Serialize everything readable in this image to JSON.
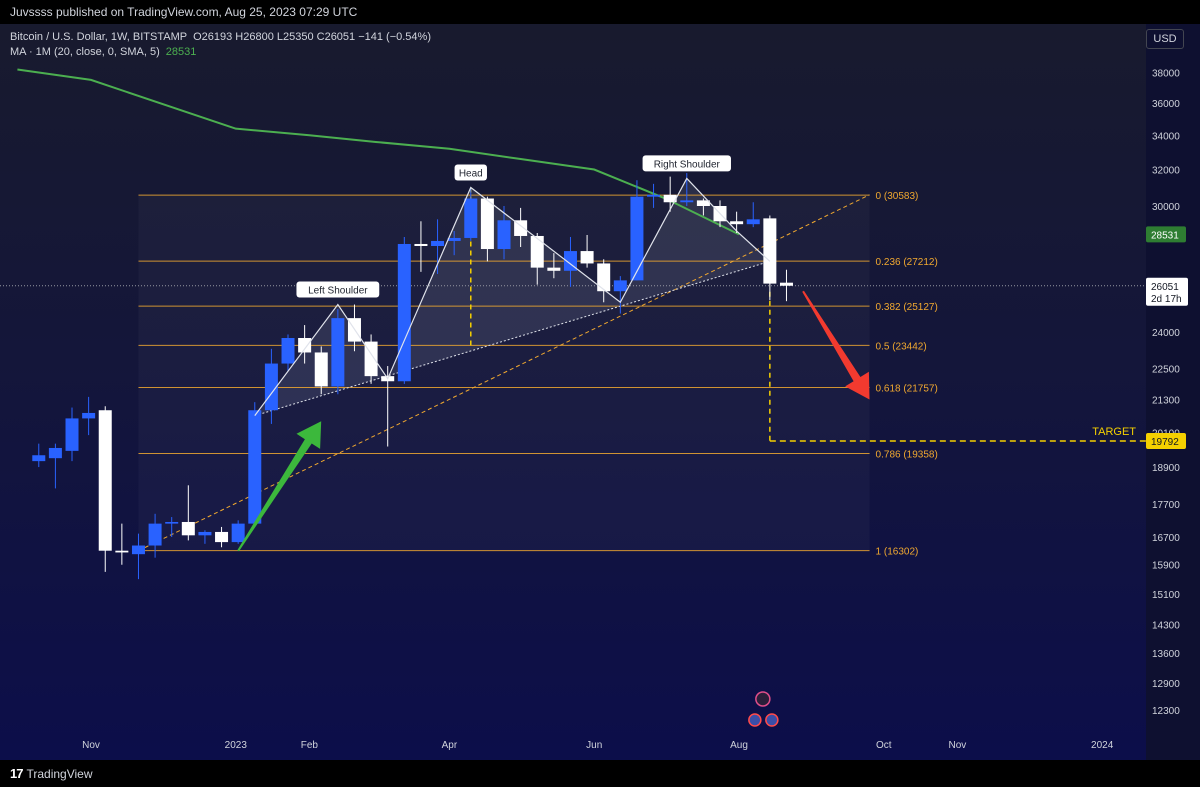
{
  "header": {
    "published": "Juvssss published on TradingView.com, Aug 25, 2023 07:29 UTC"
  },
  "legend": {
    "symbol": "Bitcoin / U.S. Dollar, 1W, BITSTAMP",
    "ohlc": "O26193  H26800  L25350  C26051  −141  (−0.54%)",
    "ma_label": "MA · 1M (20, close, 0, SMA, 5)",
    "ma_value": "28531"
  },
  "currency": "USD",
  "footer": {
    "brand": "TradingView",
    "brand_mark": "17"
  },
  "colors": {
    "up": "#2962ff",
    "down": "#ffffff",
    "ma": "#4caf50",
    "fib": "#f0a830",
    "target": "#f5d000",
    "arrow_up": "#3cb83c",
    "arrow_down": "#f23a2f"
  },
  "chart_data": {
    "type": "candlestick",
    "timeframe": "1W",
    "ylim": [
      11600,
      39000
    ],
    "y_ticks": [
      {
        "value": 38000,
        "label": "38000"
      },
      {
        "value": 36000,
        "label": "36000"
      },
      {
        "value": 34000,
        "label": "34000"
      },
      {
        "value": 32000,
        "label": "32000"
      },
      {
        "value": 30000,
        "label": "30000"
      },
      {
        "value": 24000,
        "label": "24000"
      },
      {
        "value": 22500,
        "label": "22500"
      },
      {
        "value": 21300,
        "label": "21300"
      },
      {
        "value": 20100,
        "label": "20100"
      },
      {
        "value": 18900,
        "label": "18900"
      },
      {
        "value": 17700,
        "label": "17700"
      },
      {
        "value": 16700,
        "label": "16700"
      },
      {
        "value": 15900,
        "label": "15900"
      },
      {
        "value": 15100,
        "label": "15100"
      },
      {
        "value": 14300,
        "label": "14300"
      },
      {
        "value": 13600,
        "label": "13600"
      },
      {
        "value": 12900,
        "label": "12900"
      },
      {
        "value": 12300,
        "label": "12300"
      }
    ],
    "x_ticks": [
      {
        "date": "2022-11-01",
        "label": "Nov"
      },
      {
        "date": "2023-01-01",
        "label": "2023"
      },
      {
        "date": "2023-02-01",
        "label": "Feb"
      },
      {
        "date": "2023-04-01",
        "label": "Apr"
      },
      {
        "date": "2023-06-01",
        "label": "Jun"
      },
      {
        "date": "2023-08-01",
        "label": "Aug"
      },
      {
        "date": "2023-10-01",
        "label": "Oct"
      },
      {
        "date": "2023-11-01",
        "label": "Nov"
      },
      {
        "date": "2024-01-01",
        "label": "2024"
      }
    ],
    "candles": [
      {
        "date": "2022-10-10",
        "o": 19100,
        "h": 19700,
        "l": 18900,
        "c": 19300
      },
      {
        "date": "2022-10-17",
        "o": 19200,
        "h": 19700,
        "l": 18200,
        "c": 19550
      },
      {
        "date": "2022-10-24",
        "o": 19450,
        "h": 21000,
        "l": 19100,
        "c": 20600
      },
      {
        "date": "2022-10-31",
        "o": 20600,
        "h": 21400,
        "l": 20000,
        "c": 20800
      },
      {
        "date": "2022-11-07",
        "o": 20900,
        "h": 21050,
        "l": 15700,
        "c": 16300
      },
      {
        "date": "2022-11-14",
        "o": 16300,
        "h": 17100,
        "l": 15900,
        "c": 16250
      },
      {
        "date": "2022-11-21",
        "o": 16200,
        "h": 16800,
        "l": 15500,
        "c": 16450
      },
      {
        "date": "2022-11-28",
        "o": 16450,
        "h": 17400,
        "l": 16100,
        "c": 17100
      },
      {
        "date": "2022-12-05",
        "o": 17100,
        "h": 17300,
        "l": 16700,
        "c": 17150
      },
      {
        "date": "2022-12-12",
        "o": 17150,
        "h": 18300,
        "l": 16600,
        "c": 16750
      },
      {
        "date": "2022-12-19",
        "o": 16750,
        "h": 16900,
        "l": 16500,
        "c": 16850
      },
      {
        "date": "2022-12-26",
        "o": 16850,
        "h": 17000,
        "l": 16400,
        "c": 16550
      },
      {
        "date": "2023-01-02",
        "o": 16550,
        "h": 17200,
        "l": 16500,
        "c": 17100
      },
      {
        "date": "2023-01-09",
        "o": 17100,
        "h": 21200,
        "l": 17000,
        "c": 20900
      },
      {
        "date": "2023-01-16",
        "o": 20900,
        "h": 23300,
        "l": 20400,
        "c": 22700
      },
      {
        "date": "2023-01-23",
        "o": 22700,
        "h": 23900,
        "l": 22400,
        "c": 23750
      },
      {
        "date": "2023-01-30",
        "o": 23750,
        "h": 24300,
        "l": 22700,
        "c": 23150
      },
      {
        "date": "2023-02-06",
        "o": 23150,
        "h": 23400,
        "l": 21500,
        "c": 21800
      },
      {
        "date": "2023-02-13",
        "o": 21800,
        "h": 25000,
        "l": 21500,
        "c": 24600
      },
      {
        "date": "2023-02-20",
        "o": 24600,
        "h": 25200,
        "l": 23200,
        "c": 23600
      },
      {
        "date": "2023-02-27",
        "o": 23600,
        "h": 23900,
        "l": 21900,
        "c": 22200
      },
      {
        "date": "2023-03-06",
        "o": 22200,
        "h": 22600,
        "l": 19600,
        "c": 22000
      },
      {
        "date": "2023-03-13",
        "o": 22000,
        "h": 28400,
        "l": 21900,
        "c": 28050
      },
      {
        "date": "2023-03-20",
        "o": 28050,
        "h": 29200,
        "l": 26700,
        "c": 27950
      },
      {
        "date": "2023-03-27",
        "o": 27950,
        "h": 29300,
        "l": 26600,
        "c": 28200
      },
      {
        "date": "2023-04-03",
        "o": 28200,
        "h": 28700,
        "l": 27500,
        "c": 28350
      },
      {
        "date": "2023-04-10",
        "o": 28350,
        "h": 31000,
        "l": 28200,
        "c": 30400
      },
      {
        "date": "2023-04-17",
        "o": 30400,
        "h": 30500,
        "l": 27200,
        "c": 27800
      },
      {
        "date": "2023-04-24",
        "o": 27800,
        "h": 30000,
        "l": 27300,
        "c": 29250
      },
      {
        "date": "2023-05-01",
        "o": 29250,
        "h": 29900,
        "l": 27900,
        "c": 28450
      },
      {
        "date": "2023-05-08",
        "o": 28450,
        "h": 28600,
        "l": 26100,
        "c": 26900
      },
      {
        "date": "2023-05-15",
        "o": 26900,
        "h": 27600,
        "l": 26400,
        "c": 26750
      },
      {
        "date": "2023-05-22",
        "o": 26750,
        "h": 28400,
        "l": 26000,
        "c": 27700
      },
      {
        "date": "2023-05-29",
        "o": 27700,
        "h": 28500,
        "l": 26900,
        "c": 27100
      },
      {
        "date": "2023-06-05",
        "o": 27100,
        "h": 27300,
        "l": 25300,
        "c": 25800
      },
      {
        "date": "2023-06-12",
        "o": 25800,
        "h": 26500,
        "l": 24800,
        "c": 26300
      },
      {
        "date": "2023-06-19",
        "o": 26300,
        "h": 31400,
        "l": 26300,
        "c": 30500
      },
      {
        "date": "2023-06-26",
        "o": 30500,
        "h": 31200,
        "l": 29900,
        "c": 30600
      },
      {
        "date": "2023-07-03",
        "o": 30600,
        "h": 31600,
        "l": 29700,
        "c": 30200
      },
      {
        "date": "2023-07-10",
        "o": 30200,
        "h": 31800,
        "l": 30000,
        "c": 30300
      },
      {
        "date": "2023-07-17",
        "o": 30300,
        "h": 30400,
        "l": 29500,
        "c": 30000
      },
      {
        "date": "2023-07-24",
        "o": 30000,
        "h": 30300,
        "l": 28900,
        "c": 29200
      },
      {
        "date": "2023-07-31",
        "o": 29200,
        "h": 29700,
        "l": 28600,
        "c": 29050
      },
      {
        "date": "2023-08-07",
        "o": 29050,
        "h": 30200,
        "l": 28900,
        "c": 29300
      },
      {
        "date": "2023-08-14",
        "o": 29350,
        "h": 29500,
        "l": 25400,
        "c": 26150
      },
      {
        "date": "2023-08-21",
        "o": 26193,
        "h": 26800,
        "l": 25350,
        "c": 26051
      }
    ],
    "ma_series": {
      "name": "MA · 1M (20, close, 0, SMA, 5)",
      "points": [
        {
          "date": "2022-10-01",
          "value": 38200
        },
        {
          "date": "2022-11-01",
          "value": 37500
        },
        {
          "date": "2023-01-01",
          "value": 34400
        },
        {
          "date": "2023-02-01",
          "value": 34000
        },
        {
          "date": "2023-03-01",
          "value": 33600
        },
        {
          "date": "2023-04-01",
          "value": 33200
        },
        {
          "date": "2023-05-01",
          "value": 32600
        },
        {
          "date": "2023-06-01",
          "value": 32000
        },
        {
          "date": "2023-07-01",
          "value": 30400
        },
        {
          "date": "2023-08-01",
          "value": 28531
        }
      ],
      "last_value": "28531"
    },
    "fib_levels": [
      {
        "ratio": "0",
        "value": 30583,
        "label": "0 (30583)"
      },
      {
        "ratio": "0.236",
        "value": 27212,
        "label": "0.236 (27212)"
      },
      {
        "ratio": "0.382",
        "value": 25127,
        "label": "0.382 (25127)"
      },
      {
        "ratio": "0.5",
        "value": 23442,
        "label": "0.5 (23442)"
      },
      {
        "ratio": "0.618",
        "value": 21757,
        "label": "0.618 (21757)"
      },
      {
        "ratio": "0.786",
        "value": 19358,
        "label": "0.786 (19358)"
      },
      {
        "ratio": "1",
        "value": 16302,
        "label": "1 (16302)"
      }
    ],
    "fib_range": {
      "start": "2022-11-21",
      "end": "2023-09-25"
    },
    "pattern": {
      "name": "head and shoulders",
      "points": [
        {
          "date": "2023-01-09",
          "value": 20700
        },
        {
          "date": "2023-02-13",
          "value": 25200,
          "label": "Left Shoulder"
        },
        {
          "date": "2023-03-06",
          "value": 22100
        },
        {
          "date": "2023-04-10",
          "value": 31000,
          "label": "Head"
        },
        {
          "date": "2023-06-12",
          "value": 25300
        },
        {
          "date": "2023-07-10",
          "value": 31500,
          "label": "Right Shoulder"
        },
        {
          "date": "2023-07-31",
          "value": 28700
        },
        {
          "date": "2023-08-14",
          "value": 27200
        }
      ],
      "neckline": [
        {
          "date": "2023-01-09",
          "value": 20700
        },
        {
          "date": "2023-08-14",
          "value": 27200
        }
      ]
    },
    "trendline": [
      {
        "date": "2022-11-21",
        "value": 16300
      },
      {
        "date": "2023-09-25",
        "value": 30600
      }
    ],
    "head_measure": {
      "date": "2023-04-10",
      "from": 31000,
      "to": 23400
    },
    "target": {
      "label": "TARGET",
      "value": 19792,
      "price_label": "19792",
      "from_date": "2023-08-14"
    },
    "current_price": {
      "value": 26051,
      "label": "26051",
      "countdown": "2d 17h"
    },
    "arrows": [
      {
        "kind": "up",
        "from_date": "2023-01-02",
        "from": 16300,
        "to_date": "2023-02-06",
        "to": 20500
      },
      {
        "kind": "down",
        "from_date": "2023-08-28",
        "from": 25800,
        "to_date": "2023-09-25",
        "to": 21300
      }
    ]
  }
}
